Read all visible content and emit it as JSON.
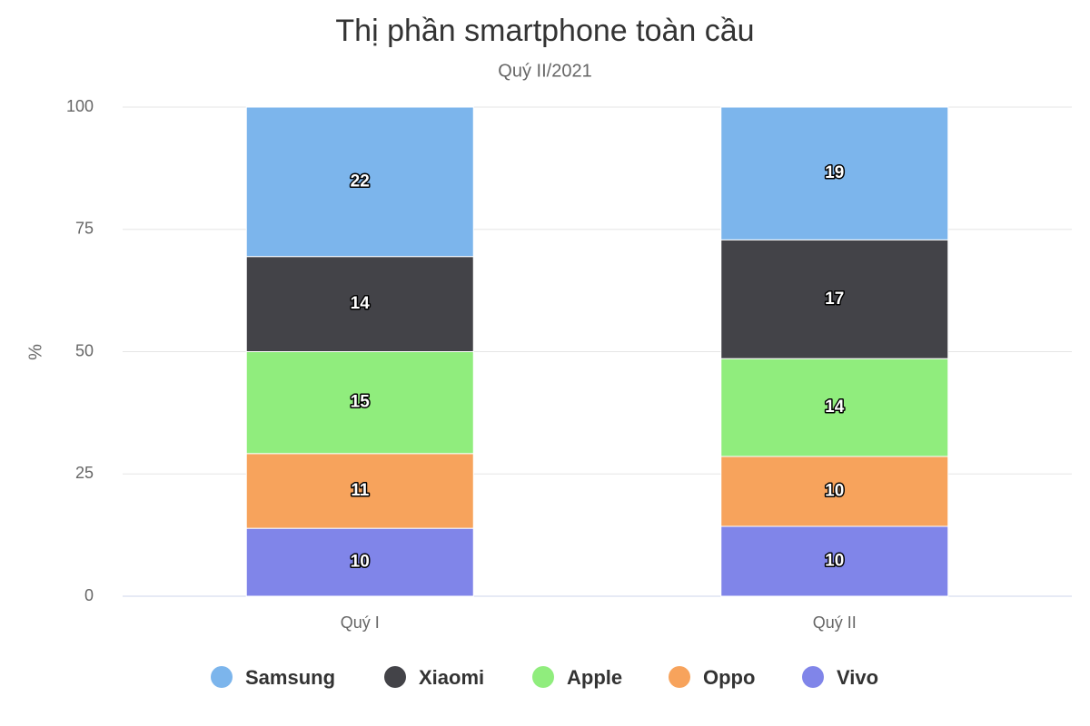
{
  "chart_data": {
    "type": "bar",
    "stacking": "percent",
    "title": "Thị phần smartphone toàn cầu",
    "subtitle": "Quý II/2021",
    "y_label": "%",
    "categories": [
      "Quý I",
      "Quý II"
    ],
    "series": [
      {
        "name": "Samsung",
        "color": "#7cb5ec",
        "values": [
          22,
          19
        ]
      },
      {
        "name": "Xiaomi",
        "color": "#434348",
        "values": [
          14,
          17
        ]
      },
      {
        "name": "Apple",
        "color": "#90ed7d",
        "values": [
          15,
          14
        ]
      },
      {
        "name": "Oppo",
        "color": "#f7a35c",
        "values": [
          11,
          10
        ]
      },
      {
        "name": "Vivo",
        "color": "#8085e9",
        "values": [
          10,
          10
        ]
      }
    ],
    "ylim": [
      0,
      100
    ],
    "yticks": [
      0,
      25,
      50,
      75,
      100
    ],
    "grid": true,
    "legend": "bottom"
  }
}
